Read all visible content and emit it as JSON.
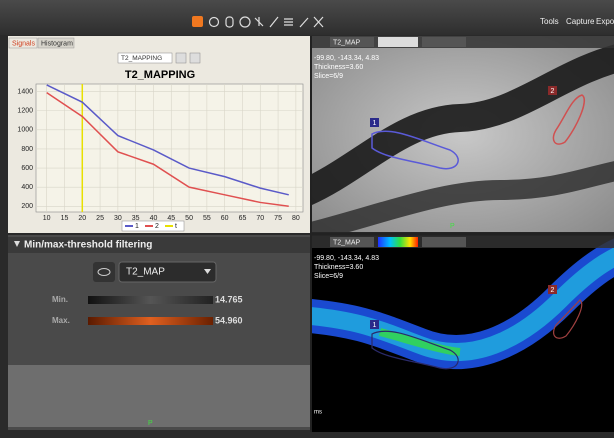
{
  "toolbar": {
    "menu": [
      "Tools",
      "Capture",
      "Export"
    ]
  },
  "signals_panel": {
    "tabs": [
      "Signals",
      "Histogram"
    ],
    "dropdown": "T2_MAPPING"
  },
  "chart_data": {
    "type": "line",
    "title": "T2_MAPPING",
    "x": [
      10,
      20,
      30,
      40,
      50,
      60,
      70,
      78
    ],
    "series": [
      {
        "name": "1",
        "color": "#5a5ac8",
        "values": [
          1470,
          1290,
          940,
          790,
          600,
          510,
          390,
          320
        ]
      },
      {
        "name": "2",
        "color": "#e05050",
        "values": [
          1390,
          1140,
          770,
          640,
          400,
          320,
          240,
          200
        ]
      }
    ],
    "vline": {
      "name": "t",
      "x": 20,
      "color": "#e8e000"
    },
    "xlim": [
      7,
      82
    ],
    "xticks": [
      10,
      15,
      20,
      25,
      30,
      35,
      40,
      45,
      50,
      55,
      60,
      65,
      70,
      75,
      80
    ],
    "ylim": [
      140,
      1480
    ],
    "yticks": [
      200,
      400,
      600,
      800,
      1000,
      1200,
      1400
    ],
    "grid": true
  },
  "threshold_panel": {
    "title": "Min/max-threshold filtering",
    "dropdown": "T2_MAP",
    "min_label": "Min.",
    "min_value": "14.765",
    "max_label": "Max.",
    "max_value": "54.960",
    "footer": "P"
  },
  "viewport_top": {
    "dropdown": "T2_MAP",
    "coords": "-99.80, -143.34, 4.83",
    "thickness": "Thickness=3.60",
    "slice": "Slice=6/9",
    "roi_labels": [
      "1",
      "2"
    ],
    "orientation": "P"
  },
  "viewport_bottom": {
    "dropdown": "T2_MAP",
    "coords": "-99.80, -143.34, 4.83",
    "thickness": "Thickness=3.60",
    "slice": "Slice=6/9",
    "roi_labels": [
      "1",
      "2"
    ],
    "unit": "ms"
  }
}
